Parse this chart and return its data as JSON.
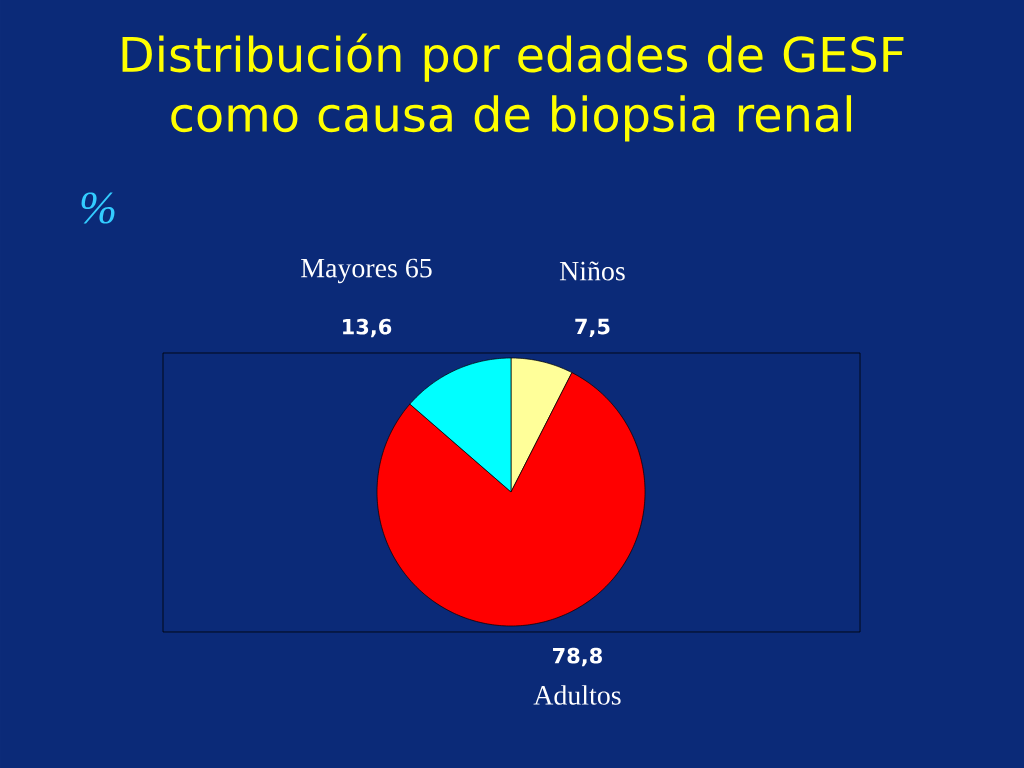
{
  "chart_data": {
    "type": "pie",
    "title": "Distribución por edades de GESF como causa de biopsia renal",
    "annotations": [
      "%"
    ],
    "categories": [
      "Niños",
      "Adultos",
      "Mayores 65"
    ],
    "values": [
      7.5,
      78.8,
      13.6
    ],
    "value_labels": [
      "7,5",
      "78,8",
      "13,6"
    ],
    "colors": [
      "#ffff99",
      "#ff0000",
      "#00ffff"
    ]
  }
}
